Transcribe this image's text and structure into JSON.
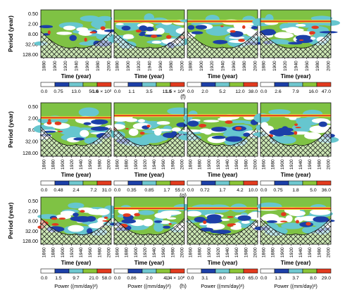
{
  "chart_data": [
    {
      "type": "heatmap",
      "row_label": "f",
      "ylabel": "Period (year)",
      "y_ticks": [
        "0.50",
        "2.00",
        "8.00",
        "32.00",
        "128.00"
      ],
      "x_ticks": [
        "1880",
        "1900",
        "1920",
        "1940",
        "1960",
        "1980",
        "2000"
      ],
      "xlabel": "Time (year)",
      "panels": [
        {
          "colorbar_ticks": [
            "0.0",
            "0.75",
            "13.0",
            "50.0",
            "1.6 × 10²"
          ]
        },
        {
          "colorbar_ticks": [
            "0.0",
            "1.1",
            "3.5",
            "11.0",
            "1.5 × 10²"
          ]
        },
        {
          "colorbar_ticks": [
            "0.0",
            "2.0",
            "5.2",
            "12.0",
            "38.0"
          ]
        },
        {
          "colorbar_ticks": [
            "0.0",
            "2.6",
            "7.9",
            "16.0",
            "47.0"
          ]
        }
      ]
    },
    {
      "type": "heatmap",
      "row_label": "g",
      "ylabel": "Period (year)",
      "y_ticks": [
        "0.50",
        "2.00",
        "8.00",
        "32.00",
        "128.00"
      ],
      "x_ticks": [
        "1860",
        "1880",
        "1900",
        "1920",
        "1940",
        "1960",
        "1980",
        "2000"
      ],
      "xlabel": "Time (year)",
      "panels": [
        {
          "colorbar_ticks": [
            "0.0",
            "0.48",
            "2.4",
            "7.2",
            "31.0"
          ]
        },
        {
          "colorbar_ticks": [
            "0.0",
            "0.35",
            "0.85",
            "1.7",
            "55.0"
          ]
        },
        {
          "colorbar_ticks": [
            "0.0",
            "0.72",
            "1.7",
            "4.2",
            "10.0"
          ]
        },
        {
          "colorbar_ticks": [
            "0.0",
            "0.75",
            "1.8",
            "5.0",
            "36.0"
          ]
        }
      ]
    },
    {
      "type": "heatmap",
      "row_label": "h",
      "ylabel": "Period (year)",
      "y_ticks": [
        "0.50",
        "2.00",
        "8.00",
        "32.00",
        "128.00"
      ],
      "x_ticks": [
        "1860",
        "1880",
        "1900",
        "1920",
        "1940",
        "1960",
        "1980",
        "2000"
      ],
      "xlabel": "Time (year)",
      "power_label": "Power ((mm/day)²)",
      "panels": [
        {
          "colorbar_ticks": [
            "0.0",
            "1.5",
            "9.7",
            "21.0",
            "58.0"
          ]
        },
        {
          "colorbar_ticks": [
            "0.0",
            "0.86",
            "2.0",
            "4.3",
            "1.4 × 10²"
          ]
        },
        {
          "colorbar_ticks": [
            "0.0",
            "3.1",
            "8.0",
            "18.0",
            "65.0"
          ]
        },
        {
          "colorbar_ticks": [
            "0.0",
            "1.3",
            "3.7",
            "8.0",
            "29.0"
          ]
        }
      ]
    }
  ],
  "colorbar_colors": [
    "#ffffff",
    "#1c3fa8",
    "#6fc7cf",
    "#8ac437",
    "#e23a1e"
  ]
}
